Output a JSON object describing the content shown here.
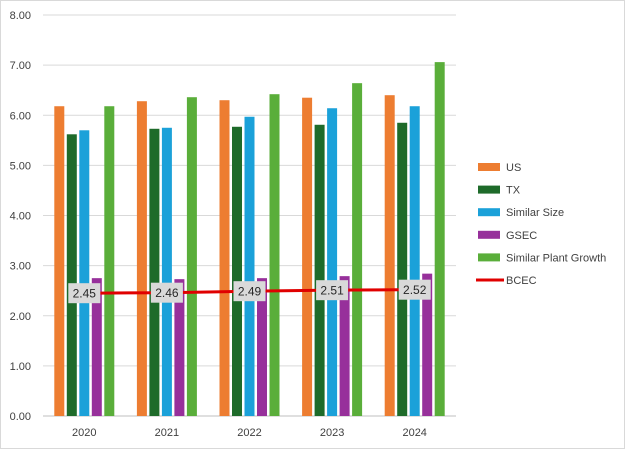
{
  "chart_data": {
    "type": "bar",
    "categories": [
      "2020",
      "2021",
      "2022",
      "2023",
      "2024"
    ],
    "ylim": [
      0,
      8
    ],
    "yticks": [
      "0.00",
      "1.00",
      "2.00",
      "3.00",
      "4.00",
      "5.00",
      "6.00",
      "7.00",
      "8.00"
    ],
    "grid": true,
    "legend_position": "right",
    "series": [
      {
        "name": "US",
        "type": "bar",
        "color": "#ED7D31",
        "values": [
          6.18,
          6.28,
          6.3,
          6.35,
          6.4
        ]
      },
      {
        "name": "TX",
        "type": "bar",
        "color": "#1E6B2A",
        "values": [
          5.62,
          5.73,
          5.77,
          5.81,
          5.85
        ]
      },
      {
        "name": "Similar Size",
        "type": "bar",
        "color": "#1BA1D9",
        "values": [
          5.7,
          5.75,
          5.97,
          6.14,
          6.18
        ]
      },
      {
        "name": "GSEC",
        "type": "bar",
        "color": "#97309B",
        "values": [
          2.75,
          2.73,
          2.75,
          2.79,
          2.84
        ]
      },
      {
        "name": "Similar Plant Growth",
        "type": "bar",
        "color": "#5AAE3A",
        "values": [
          6.18,
          6.36,
          6.42,
          6.64,
          7.06
        ]
      },
      {
        "name": "BCEC",
        "type": "line",
        "color": "#E00000",
        "values": [
          2.45,
          2.46,
          2.49,
          2.51,
          2.52
        ],
        "data_labels": [
          "2.45",
          "2.46",
          "2.49",
          "2.51",
          "2.52"
        ]
      }
    ]
  }
}
